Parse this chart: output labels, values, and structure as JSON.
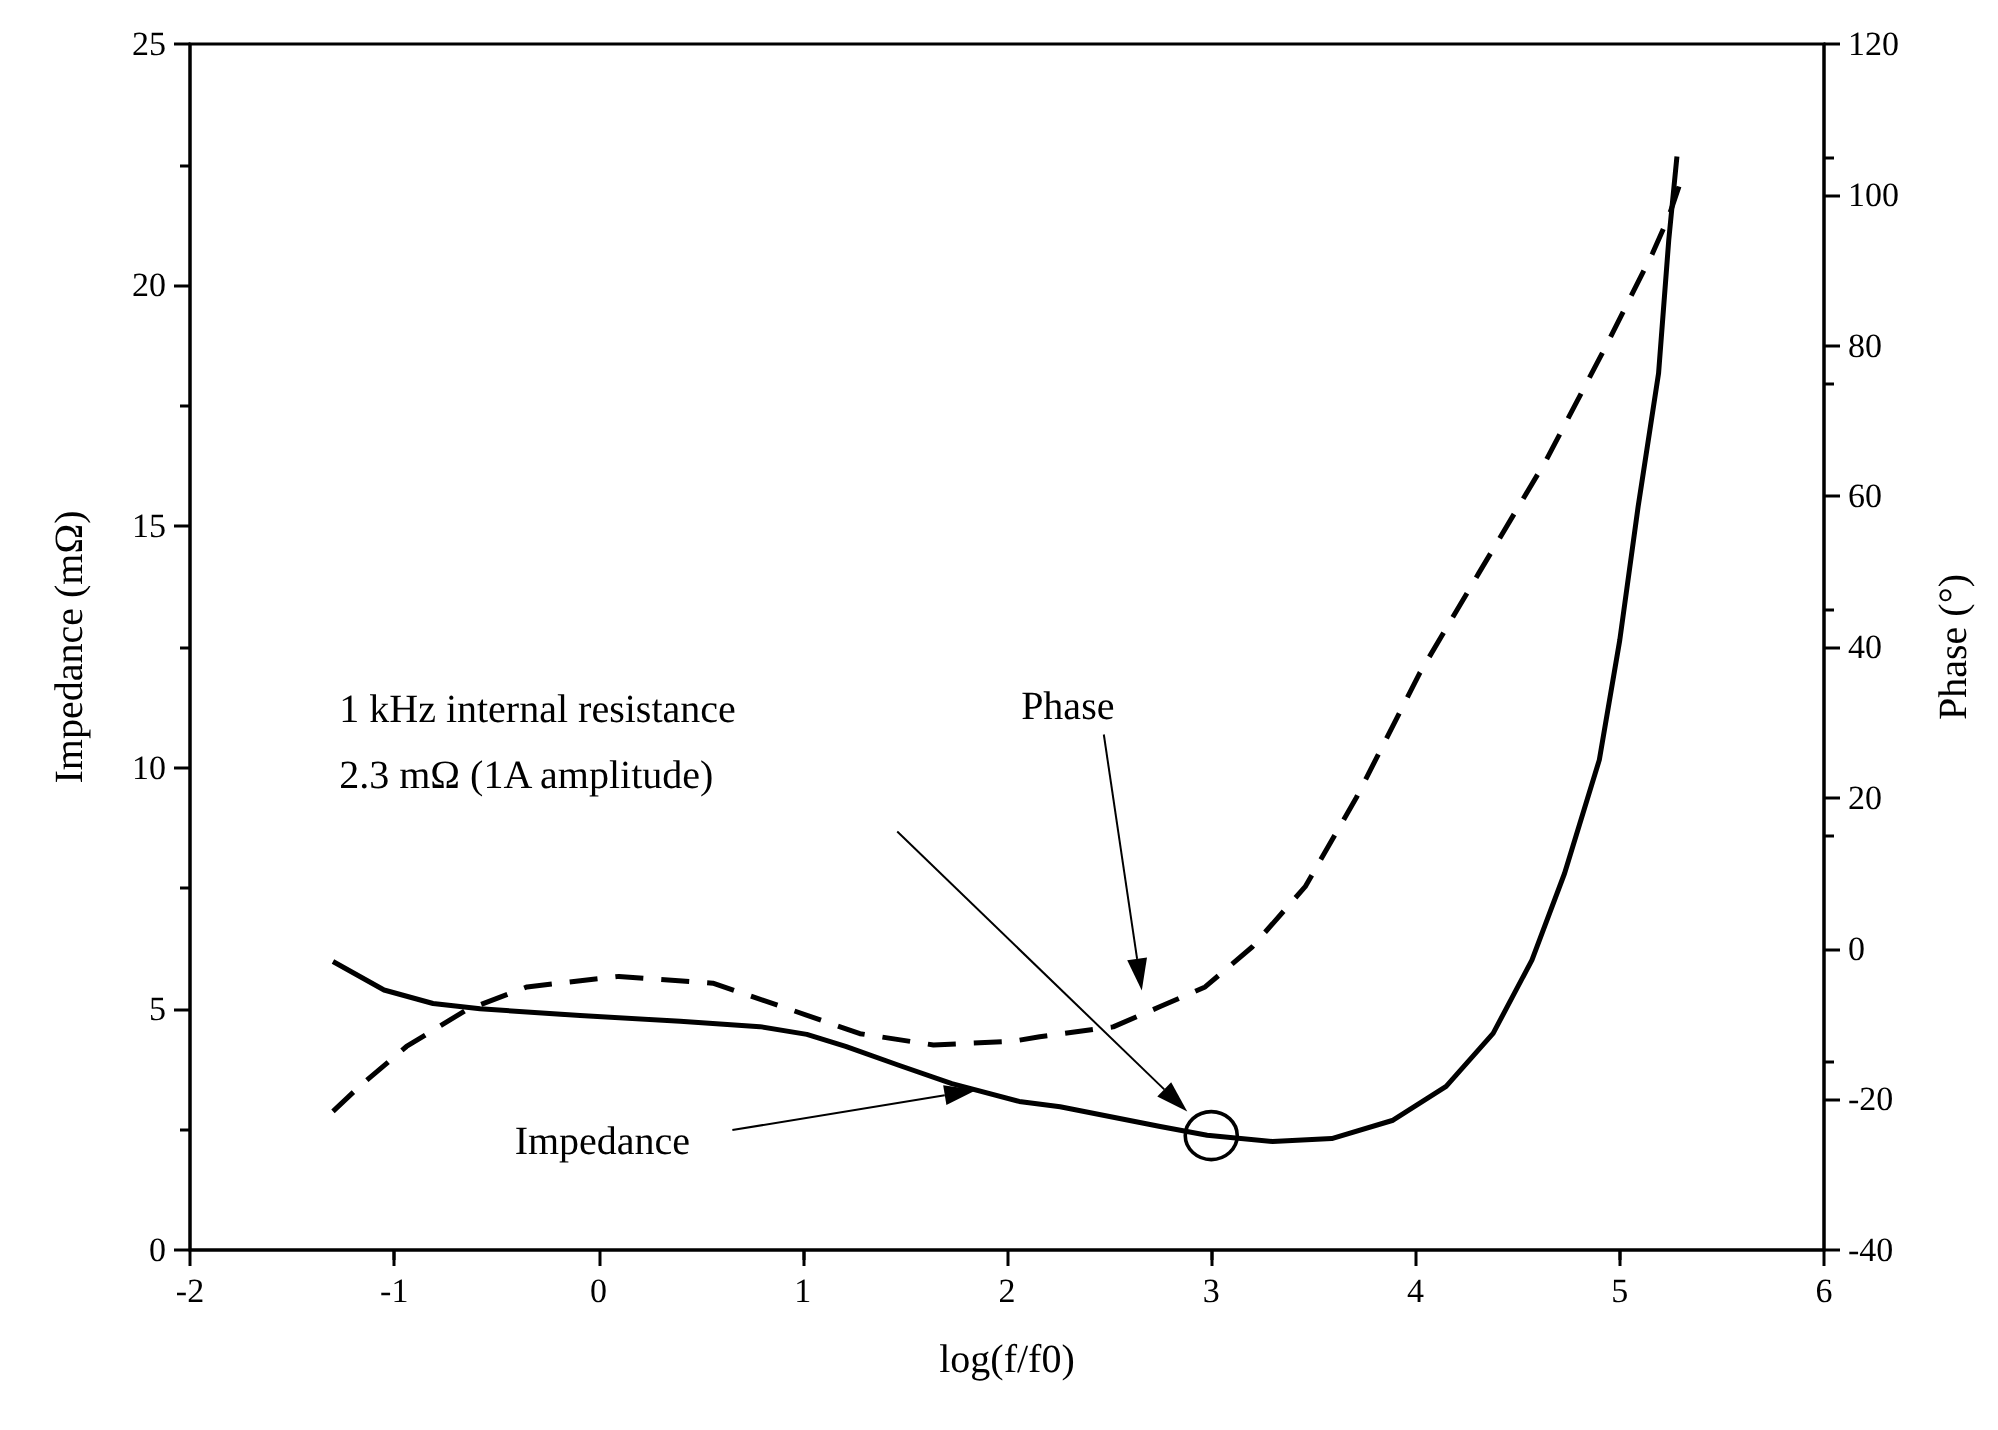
{
  "chart_data": {
    "type": "line",
    "xlabel": "log(f/f0)",
    "ylabel": "Impedance (mΩ)",
    "y2label": "Phase (°)",
    "xlim": [
      -2,
      6
    ],
    "xticks": [
      -2,
      -1,
      0,
      1,
      2,
      3,
      4,
      5,
      6
    ],
    "ylim": [
      0,
      25
    ],
    "yticks": [
      0,
      5,
      10,
      15,
      20,
      25
    ],
    "y2lim": [
      -40,
      120
    ],
    "y2ticks": [
      -40,
      -20,
      0,
      20,
      40,
      60,
      80,
      100,
      120
    ],
    "grid": false,
    "marker": "none",
    "annotations": [
      "1 kHz internal resistance\n2.3 mΩ (1A amplitude)",
      "Impedance",
      "Phase"
    ],
    "series": [
      {
        "color": "#000000",
        "line_style": "solid",
        "x": [
          -1.3,
          -1.05,
          -0.81,
          -0.58,
          -0.09,
          0.4,
          0.79,
          1.02,
          1.21,
          1.47,
          1.73,
          2.06,
          2.26,
          2.75,
          2.98,
          3.3,
          3.59,
          3.89,
          4.15,
          4.38,
          4.57,
          4.73,
          4.9,
          5.0,
          5.09,
          5.19,
          5.24,
          5.28
        ],
        "values": [
          5.98,
          5.39,
          5.11,
          5.0,
          4.86,
          4.74,
          4.63,
          4.47,
          4.22,
          3.83,
          3.45,
          3.08,
          2.97,
          2.56,
          2.38,
          2.25,
          2.31,
          2.69,
          3.39,
          4.49,
          6.01,
          7.81,
          10.16,
          12.64,
          15.41,
          18.17,
          20.94,
          22.67
        ]
      },
      {
        "color": "#000000",
        "line_style": "dashed",
        "axis": "y2",
        "x": [
          -1.3,
          -1.17,
          -0.94,
          -0.65,
          -0.35,
          0.1,
          0.56,
          0.95,
          1.28,
          1.64,
          2.03,
          2.16,
          2.52,
          2.75,
          2.97,
          3.2,
          3.46,
          3.71,
          4.02,
          4.31,
          4.64,
          4.93,
          5.16,
          5.24,
          5.29
        ],
        "values": [
          -21.6,
          -18.3,
          -13.0,
          -8.2,
          -5.1,
          -3.7,
          -4.6,
          -8.2,
          -11.3,
          -12.8,
          -12.3,
          -11.7,
          -10.4,
          -7.7,
          -5.1,
          0.2,
          8.2,
          20,
          36.5,
          49.8,
          64.8,
          79.8,
          92.2,
          97.1,
          101.1
        ]
      }
    ]
  }
}
